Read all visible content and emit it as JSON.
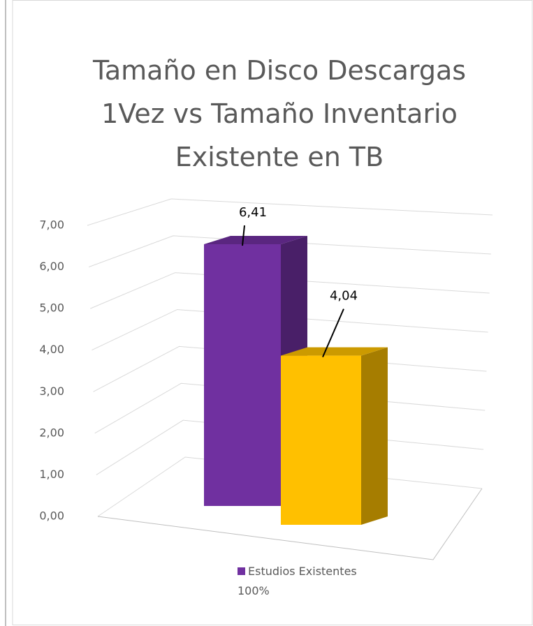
{
  "chart_data": {
    "type": "bar3d",
    "title": "Tamaño en Disco Descargas 1Vez vs Tamaño Inventario Existente en TB",
    "values": [
      6.41,
      4.04
    ],
    "value_labels": [
      "6,41",
      "4,04"
    ],
    "colors": [
      "#7030a0",
      "#ffc000"
    ],
    "legend": {
      "label": "Estudios Existentes 100%",
      "color": "#7030a0"
    },
    "ylim": [
      0,
      7
    ],
    "yticks": [
      {
        "value": 0,
        "label": "0,00"
      },
      {
        "value": 1,
        "label": "1,00"
      },
      {
        "value": 2,
        "label": "2,00"
      },
      {
        "value": 3,
        "label": "3,00"
      },
      {
        "value": 4,
        "label": "4,00"
      },
      {
        "value": 5,
        "label": "5,00"
      },
      {
        "value": 6,
        "label": "6,00"
      },
      {
        "value": 7,
        "label": "7,00"
      }
    ],
    "grid": true
  }
}
